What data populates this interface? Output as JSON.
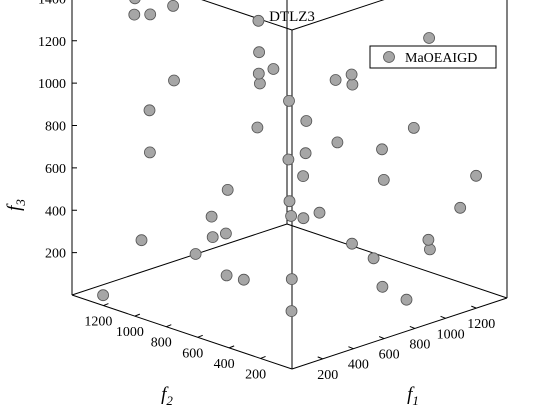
{
  "chart_data": {
    "type": "scatter",
    "projection": "3d",
    "title": "DTLZ3",
    "axes": {
      "x": {
        "label": "f",
        "subscript": "1",
        "ticks": [
          200,
          400,
          600,
          800,
          1000,
          1200
        ],
        "range": [
          0,
          1400
        ]
      },
      "y": {
        "label": "f",
        "subscript": "2",
        "ticks": [
          200,
          400,
          600,
          800,
          1000,
          1200
        ],
        "range": [
          0,
          1400
        ]
      },
      "z": {
        "label": "f",
        "subscript": "3",
        "ticks": [
          200,
          400,
          600,
          800,
          1000,
          1200,
          1400
        ],
        "range": [
          0,
          1600
        ]
      }
    },
    "legend": {
      "position": "top-right",
      "entries": [
        "MaOEAIGD"
      ]
    },
    "grid": false,
    "series": [
      {
        "name": "MaOEAIGD",
        "color": "#a6a6a6",
        "edge_color": "#555555",
        "points": [
          [
            0,
            1000,
            1500
          ],
          [
            400,
            1100,
            1450
          ],
          [
            100,
            1000,
            1400
          ],
          [
            300,
            1050,
            1380
          ],
          [
            150,
            1150,
            1350
          ],
          [
            600,
            800,
            1300
          ],
          [
            400,
            600,
            1250
          ],
          [
            200,
            400,
            1200
          ],
          [
            50,
            800,
            1150
          ],
          [
            700,
            300,
            1100
          ],
          [
            900,
            500,
            1050
          ],
          [
            800,
            900,
            1000
          ],
          [
            1000,
            700,
            950
          ],
          [
            500,
            200,
            900
          ],
          [
            300,
            1200,
            850
          ],
          [
            1100,
            300,
            800
          ],
          [
            600,
            500,
            750
          ],
          [
            200,
            1100,
            700
          ],
          [
            900,
            1100,
            650
          ],
          [
            1200,
            600,
            600
          ],
          [
            400,
            800,
            550
          ],
          [
            1000,
            1000,
            500
          ],
          [
            700,
            700,
            450
          ],
          [
            1300,
            200,
            400
          ],
          [
            500,
            1000,
            350
          ],
          [
            800,
            400,
            300
          ],
          [
            1100,
            900,
            250
          ],
          [
            300,
            600,
            200
          ],
          [
            1200,
            1100,
            150
          ],
          [
            600,
            1200,
            100
          ],
          [
            950,
            200,
            50
          ],
          [
            100,
            1300,
            0
          ],
          [
            1350,
            800,
            0
          ],
          [
            700,
            1100,
            0
          ],
          [
            1100,
            500,
            0
          ],
          [
            400,
            300,
            1000
          ],
          [
            850,
            850,
            850
          ],
          [
            250,
            250,
            600
          ],
          [
            1200,
            300,
            1200
          ],
          [
            500,
            700,
            1100
          ],
          [
            1300,
            1200,
            300
          ],
          [
            1250,
            50,
            600
          ],
          [
            350,
            1300,
            200
          ],
          [
            1400,
            500,
            150
          ],
          [
            700,
            100,
            700
          ],
          [
            200,
            700,
            400
          ],
          [
            900,
            1300,
            100
          ],
          [
            1000,
            100,
            300
          ],
          [
            50,
            50,
            400
          ],
          [
            150,
            150,
            200
          ]
        ]
      }
    ]
  }
}
